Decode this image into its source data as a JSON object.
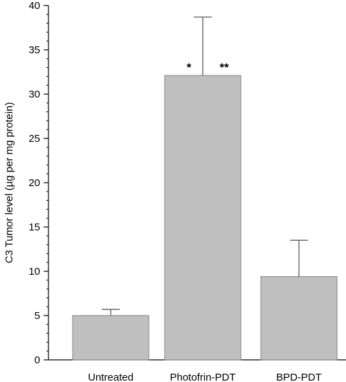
{
  "chart_data": {
    "type": "bar",
    "title": "",
    "xlabel": "",
    "ylabel": "C3 Tumor level (µg per mg protein)",
    "categories": [
      "Untreated",
      "Photofrin-PDT",
      "BPD-PDT"
    ],
    "values": [
      5.0,
      32.1,
      9.4
    ],
    "errors": [
      0.7,
      6.6,
      4.1
    ],
    "ylim": [
      0,
      40
    ],
    "yticks": [
      0,
      5,
      10,
      15,
      20,
      25,
      30,
      35,
      40
    ],
    "minor_tick_step": 1,
    "grid": false,
    "legend": "none",
    "bar_color": "#c0c0c0",
    "bar_edge_color": "#808080",
    "error_color": "#5a5a5a",
    "annotations": [
      {
        "category": "Photofrin-PDT",
        "side": "left",
        "text": "*"
      },
      {
        "category": "Photofrin-PDT",
        "side": "right",
        "text": "**"
      }
    ]
  }
}
